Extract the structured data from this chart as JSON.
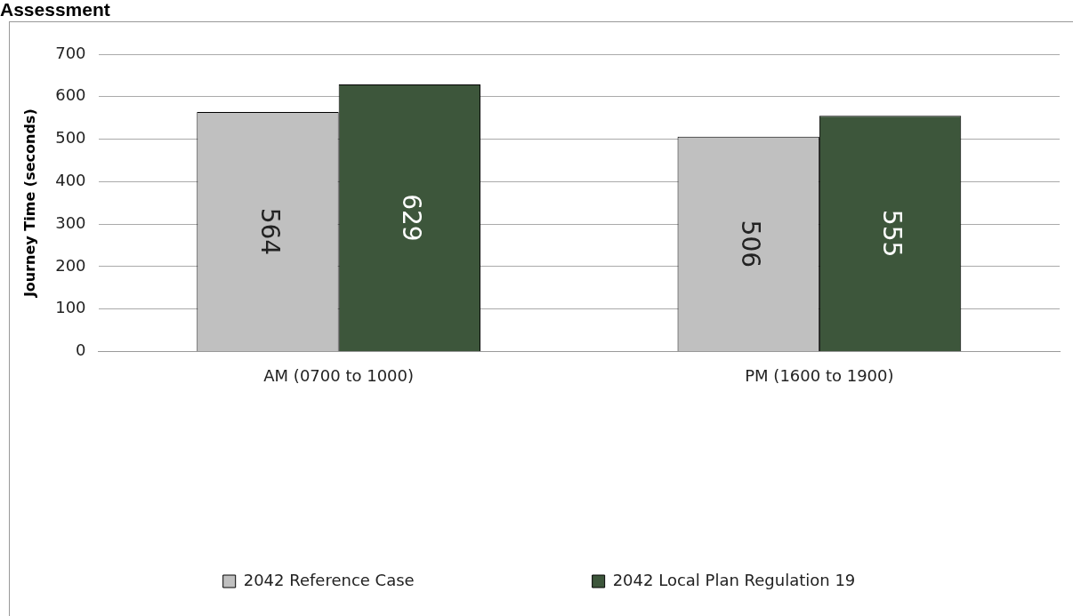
{
  "chart_data": {
    "type": "bar",
    "title": "Assessment",
    "ylabel": "Journey Time (seconds)",
    "categories": [
      "AM (0700 to 1000)",
      "PM (1600 to 1900)"
    ],
    "series": [
      {
        "name": "2042 Reference Case",
        "color": "#c0c0c0",
        "values": [
          564,
          506
        ]
      },
      {
        "name": "2042 Local Plan Regulation 19",
        "color": "#3d563b",
        "values": [
          629,
          555
        ]
      }
    ],
    "ylim": [
      0,
      700
    ],
    "yticks": [
      0,
      100,
      200,
      300,
      400,
      500,
      600,
      700
    ],
    "grid": "y",
    "legend": "bottom",
    "data_labels": true
  }
}
